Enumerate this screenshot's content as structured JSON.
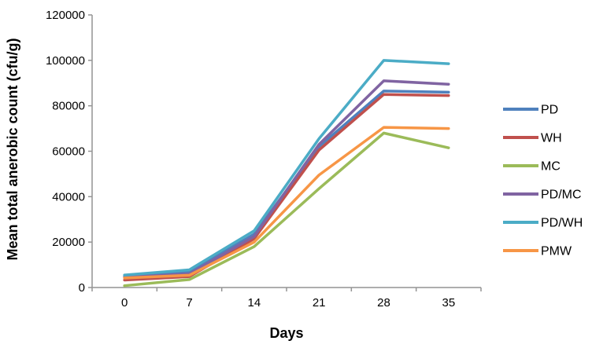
{
  "chart_data": {
    "type": "line",
    "x": [
      0,
      7,
      14,
      21,
      28,
      35
    ],
    "x_tick_labels": [
      "0",
      "7",
      "14",
      "21",
      "28",
      "35"
    ],
    "y_tick_labels": [
      "0",
      "20000",
      "40000",
      "60000",
      "80000",
      "100000",
      "120000"
    ],
    "yticks": [
      0,
      20000,
      40000,
      60000,
      80000,
      100000,
      120000
    ],
    "ylim": [
      0,
      120000
    ],
    "xlabel": "Days",
    "ylabel": "Mean total anerobic count (cfu/g)",
    "grid": false,
    "legend_position": "right",
    "series": [
      {
        "name": "PD",
        "color": "#4F81BD",
        "values": [
          5000,
          6800,
          23500,
          62000,
          86500,
          86000
        ]
      },
      {
        "name": "WH",
        "color": "#C0504D",
        "values": [
          3300,
          4800,
          21500,
          60500,
          85000,
          84500
        ]
      },
      {
        "name": "MC",
        "color": "#9BBB59",
        "values": [
          800,
          3500,
          18000,
          43500,
          68000,
          61500
        ]
      },
      {
        "name": "PD/MC",
        "color": "#8064A2",
        "values": [
          4500,
          6000,
          22500,
          63000,
          91000,
          89500
        ]
      },
      {
        "name": "PD/WH",
        "color": "#4BACC6",
        "values": [
          5500,
          7800,
          25000,
          65500,
          100000,
          98500
        ]
      },
      {
        "name": "PMW",
        "color": "#F79646",
        "values": [
          4200,
          5400,
          20000,
          49500,
          70500,
          70000
        ]
      }
    ]
  },
  "style": {
    "axis_color": "#949494",
    "background": "#ffffff",
    "line_width": 3.5,
    "legend_line_width": 4
  }
}
